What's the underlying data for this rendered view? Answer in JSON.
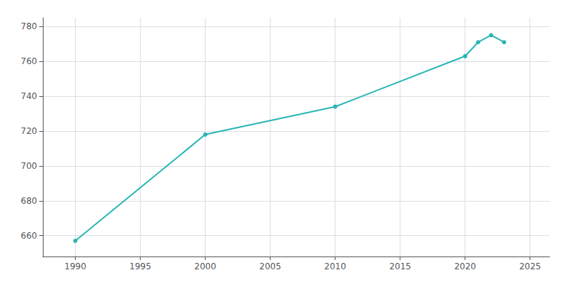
{
  "chart_data": {
    "type": "line",
    "x": [
      1990,
      2000,
      2010,
      2020,
      2021,
      2022,
      2023
    ],
    "values": [
      657,
      718,
      734,
      763,
      771,
      775,
      771
    ],
    "color": "#2ab5b5",
    "marker": "circle",
    "xlim": [
      1987.5,
      2026.5
    ],
    "ylim": [
      648,
      785
    ],
    "xticks": [
      1990,
      1995,
      2000,
      2005,
      2010,
      2015,
      2020,
      2025
    ],
    "yticks": [
      660,
      680,
      700,
      720,
      740,
      760,
      780
    ],
    "grid": true
  }
}
